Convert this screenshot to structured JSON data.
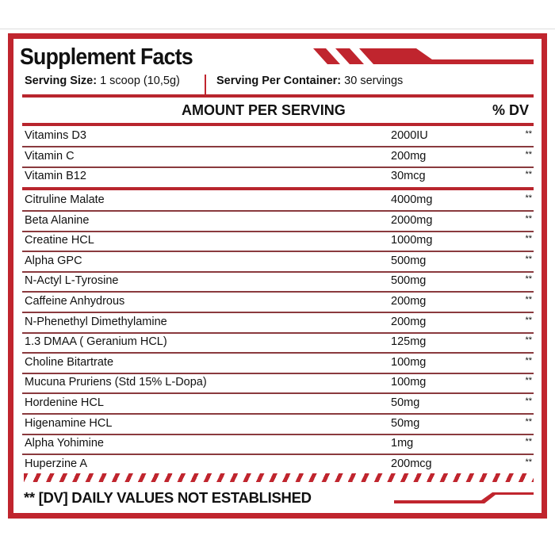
{
  "title": "Supplement Facts",
  "serving": {
    "size_label": "Serving Size:",
    "size_value": "1 scoop (10,5g)",
    "per_container_label": "Serving Per Container:",
    "per_container_value": "30 servings"
  },
  "header": {
    "amount": "AMOUNT PER SERVING",
    "dv": "% DV"
  },
  "vitamins": [
    {
      "name": "Vitamins D3",
      "amount": "2000IU",
      "dv": "**"
    },
    {
      "name": "Vitamin C",
      "amount": "200mg",
      "dv": "**"
    },
    {
      "name": "Vitamin B12",
      "amount": "30mcg",
      "dv": "**"
    }
  ],
  "ingredients": [
    {
      "name": "Citruline Malate",
      "amount": "4000mg",
      "dv": "**"
    },
    {
      "name": "Beta Alanine",
      "amount": "2000mg",
      "dv": "**"
    },
    {
      "name": "Creatine HCL",
      "amount": "1000mg",
      "dv": "**"
    },
    {
      "name": "Alpha GPC",
      "amount": "500mg",
      "dv": "**"
    },
    {
      "name": "N-Actyl L-Tyrosine",
      "amount": "500mg",
      "dv": "**"
    },
    {
      "name": "Caffeine Anhydrous",
      "amount": "200mg",
      "dv": "**"
    },
    {
      "name": "N-Phenethyl Dimethylamine",
      "amount": "200mg",
      "dv": "**"
    },
    {
      "name": "1.3 DMAA ( Geranium HCL)",
      "amount": "125mg",
      "dv": "**"
    },
    {
      "name": "Choline Bitartrate",
      "amount": "100mg",
      "dv": "**"
    },
    {
      "name": "Mucuna Pruriens (Std 15% L-Dopa)",
      "amount": "100mg",
      "dv": "**"
    },
    {
      "name": "Hordenine HCL",
      "amount": "50mg",
      "dv": "**"
    },
    {
      "name": "Higenamine HCL",
      "amount": "50mg",
      "dv": "**"
    },
    {
      "name": "Alpha Yohimine",
      "amount": "1mg",
      "dv": "**"
    },
    {
      "name": "Huperzine A",
      "amount": "200mcg",
      "dv": "**"
    }
  ],
  "footer": "** [DV] DAILY VALUES NOT ESTABLISHED",
  "colors": {
    "accent": "#c0252e",
    "text": "#111111"
  }
}
